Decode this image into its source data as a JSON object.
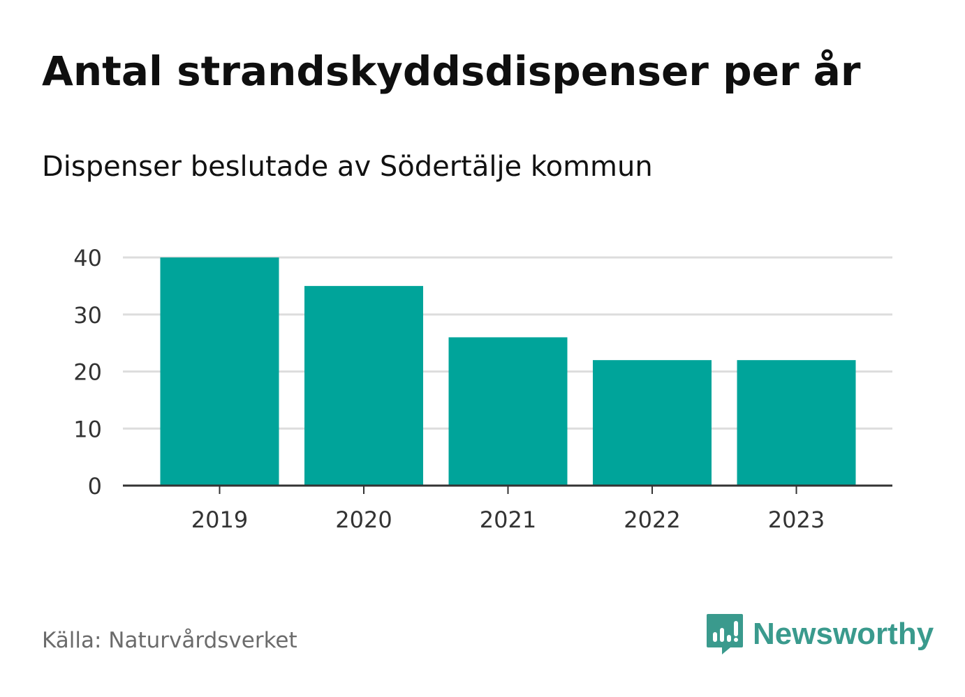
{
  "header": {
    "title": "Antal strandskyddsdispenser per år",
    "subtitle": "Dispenser beslutade av Södertälje kommun"
  },
  "footer": {
    "source": "Källa: Naturvårdsverket",
    "brand": "Newsworthy",
    "brand_icon": "newsworthy-bars-logo-icon"
  },
  "colors": {
    "bar": "#00a49a",
    "grid": "#dddddd",
    "axis": "#333333",
    "brand": "#3a9a8d"
  },
  "chart_data": {
    "type": "bar",
    "title": "Antal strandskyddsdispenser per år",
    "subtitle": "Dispenser beslutade av Södertälje kommun",
    "categories": [
      "2019",
      "2020",
      "2021",
      "2022",
      "2023"
    ],
    "values": [
      40,
      35,
      26,
      22,
      22
    ],
    "xlabel": "",
    "ylabel": "",
    "ylim": [
      0,
      40
    ],
    "yticks": [
      0,
      10,
      20,
      30,
      40
    ],
    "grid": true,
    "legend": "none"
  }
}
